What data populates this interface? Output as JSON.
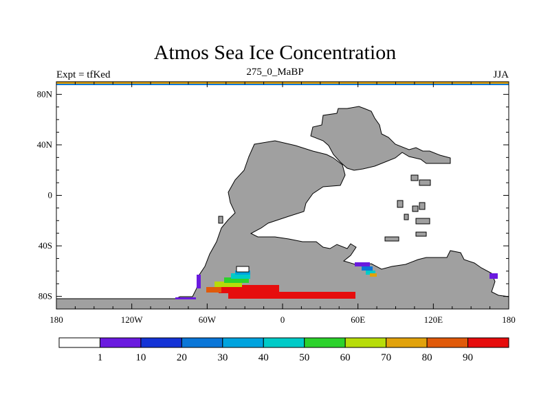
{
  "header": {
    "title": "Atmos Sea Ice Concentration",
    "left_label": "Expt = tfKed",
    "center_label": "275_0_MaBP",
    "right_label": "JJA"
  },
  "axes": {
    "x_ticks": [
      {
        "value": -180,
        "label": "180"
      },
      {
        "value": -120,
        "label": "120W"
      },
      {
        "value": -60,
        "label": "60W"
      },
      {
        "value": 0,
        "label": "0"
      },
      {
        "value": 60,
        "label": "60E"
      },
      {
        "value": 120,
        "label": "120E"
      },
      {
        "value": 180,
        "label": "180"
      }
    ],
    "y_ticks": [
      {
        "value": 80,
        "label": "80N"
      },
      {
        "value": 40,
        "label": "40N"
      },
      {
        "value": 0,
        "label": "0"
      },
      {
        "value": -40,
        "label": "40S"
      },
      {
        "value": -80,
        "label": "80S"
      }
    ],
    "lon_range": [
      -180,
      180
    ],
    "lat_range": [
      -90,
      90
    ]
  },
  "colorbar": {
    "colors": [
      "#ffffff",
      "#6a1adf",
      "#1433d6",
      "#0a76d8",
      "#00a3de",
      "#00cbc8",
      "#2cd22c",
      "#b7dc0a",
      "#e1a20c",
      "#e05a0a",
      "#e60d0d"
    ],
    "labels": [
      "1",
      "10",
      "20",
      "30",
      "40",
      "50",
      "60",
      "70",
      "80",
      "90"
    ]
  },
  "colors": {
    "land": "#a0a0a0",
    "ocean": "#ffffff"
  }
}
